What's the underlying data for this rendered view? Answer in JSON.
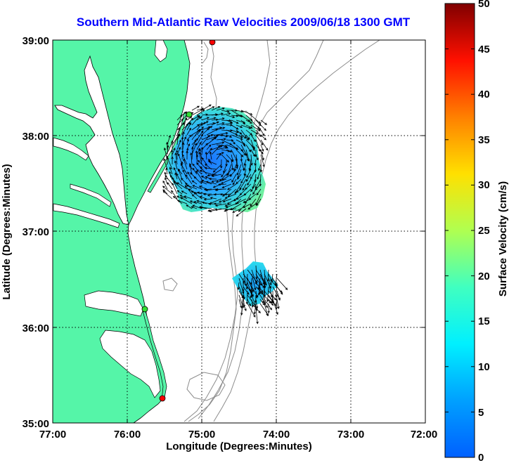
{
  "title": "Southern Mid-Atlantic Raw Velocities 2009/06/18 1300 GMT",
  "xaxis": {
    "label": "Longitude (Degrees:Minutes)",
    "ticks": [
      "77:00",
      "76:00",
      "75:00",
      "74:00",
      "73:00",
      "72:00"
    ]
  },
  "yaxis": {
    "label": "Latitude (Degrees:Minutes)",
    "ticks": [
      "39:00",
      "38:00",
      "37:00",
      "36:00",
      "35:00"
    ]
  },
  "colorbar": {
    "label": "Surface Velocity (cm/s)",
    "ticks": [
      "50",
      "45",
      "40",
      "35",
      "30",
      "25",
      "20",
      "15",
      "10",
      "5",
      "0"
    ],
    "range": [
      0,
      50
    ]
  },
  "colors": {
    "land": "#55f5a8",
    "title": "#0000ff",
    "bathymetry": "#8c8c8c",
    "grid": "#000000"
  },
  "map_extent": {
    "lon_west": -77.0,
    "lon_east": -72.0,
    "lat_south": 35.0,
    "lat_north": 39.0
  },
  "stations": [
    {
      "name": "northern-station",
      "color": "#ff0000",
      "lon": -74.87,
      "lat": 38.98
    },
    {
      "name": "delmarva-station",
      "color": "#33dd33",
      "lon": -75.15,
      "lat": 38.22
    },
    {
      "name": "outer-banks-station",
      "color": "#33dd33",
      "lon": -75.72,
      "lat": 36.18
    },
    {
      "name": "hatteras-station",
      "color": "#ff0000",
      "lon": -75.51,
      "lat": 35.25
    }
  ],
  "velocity_fields": [
    {
      "name": "chesapeake-mouth-field",
      "center_lon": -74.98,
      "center_lat": 37.62,
      "mean_speed_cm_s": 9
    },
    {
      "name": "offshore-southern-field",
      "center_lon": -74.3,
      "center_lat": 36.48,
      "mean_speed_cm_s": 12
    }
  ]
}
